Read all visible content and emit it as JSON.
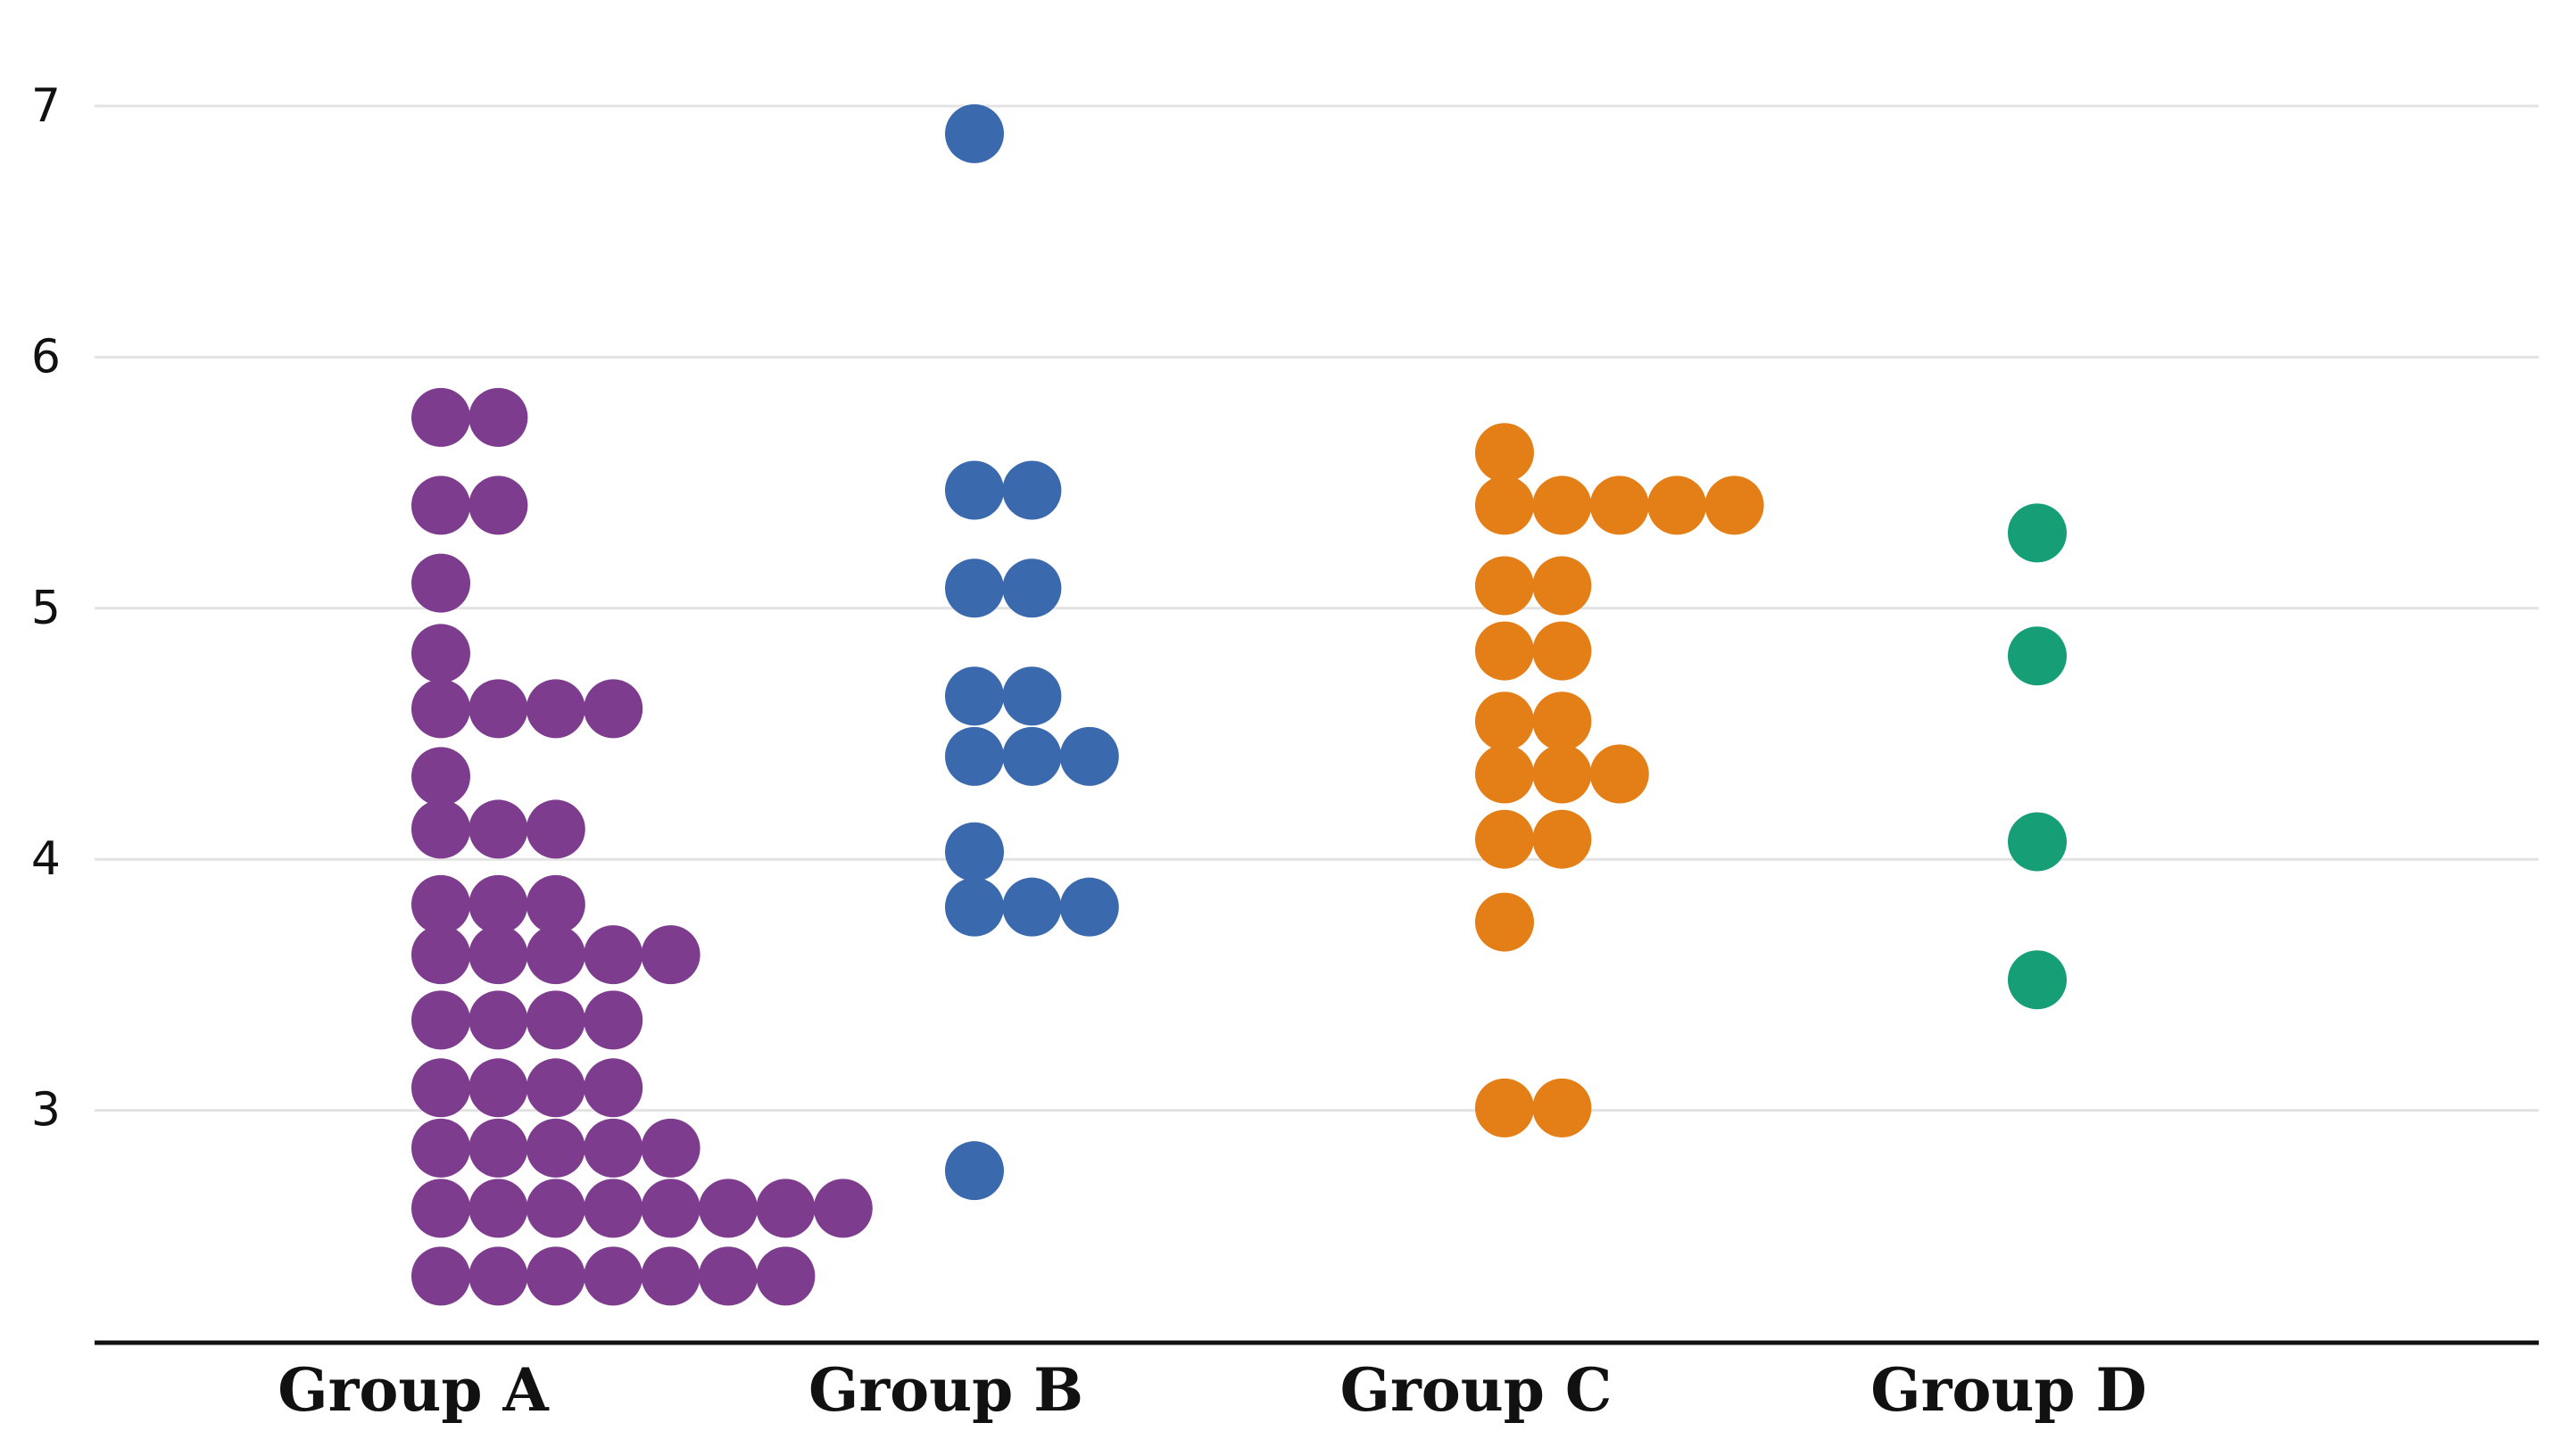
{
  "chart_data": {
    "type": "scatter",
    "subtype": "beeswarm",
    "title": "",
    "xlabel": "",
    "ylabel": "",
    "ylim": [
      2.05,
      7.22
    ],
    "yticks": [
      3,
      4,
      5,
      6,
      7
    ],
    "grid": true,
    "legend": "none",
    "categories": [
      "Group A",
      "Group B",
      "Group C",
      "Group D"
    ],
    "series": [
      {
        "category": "Group A",
        "color": "#7d3c8d",
        "values": [
          5.76,
          5.76,
          5.41,
          5.41,
          5.1,
          4.82,
          4.6,
          4.6,
          4.6,
          4.6,
          4.33,
          4.12,
          4.12,
          4.12,
          3.82,
          3.82,
          3.82,
          3.62,
          3.62,
          3.62,
          3.62,
          3.62,
          3.36,
          3.36,
          3.36,
          3.36,
          3.09,
          3.09,
          3.09,
          3.09,
          2.85,
          2.85,
          2.85,
          2.85,
          2.85,
          2.61,
          2.61,
          2.61,
          2.61,
          2.61,
          2.61,
          2.61,
          2.61,
          2.34,
          2.34,
          2.34,
          2.34,
          2.34,
          2.34,
          2.34
        ]
      },
      {
        "category": "Group B",
        "color": "#3a69ad",
        "values": [
          6.89,
          5.47,
          5.47,
          5.08,
          5.08,
          4.65,
          4.65,
          4.41,
          4.41,
          4.41,
          4.03,
          3.81,
          3.81,
          3.81,
          2.76
        ]
      },
      {
        "category": "Group C",
        "color": "#e37f16",
        "values": [
          5.62,
          5.41,
          5.41,
          5.41,
          5.41,
          5.41,
          5.09,
          5.09,
          4.83,
          4.83,
          4.55,
          4.55,
          4.34,
          4.34,
          4.34,
          4.08,
          4.08,
          3.75,
          3.01,
          3.01
        ]
      },
      {
        "category": "Group D",
        "color": "#169e77",
        "values": [
          5.3,
          4.81,
          4.07,
          3.52
        ]
      }
    ]
  }
}
